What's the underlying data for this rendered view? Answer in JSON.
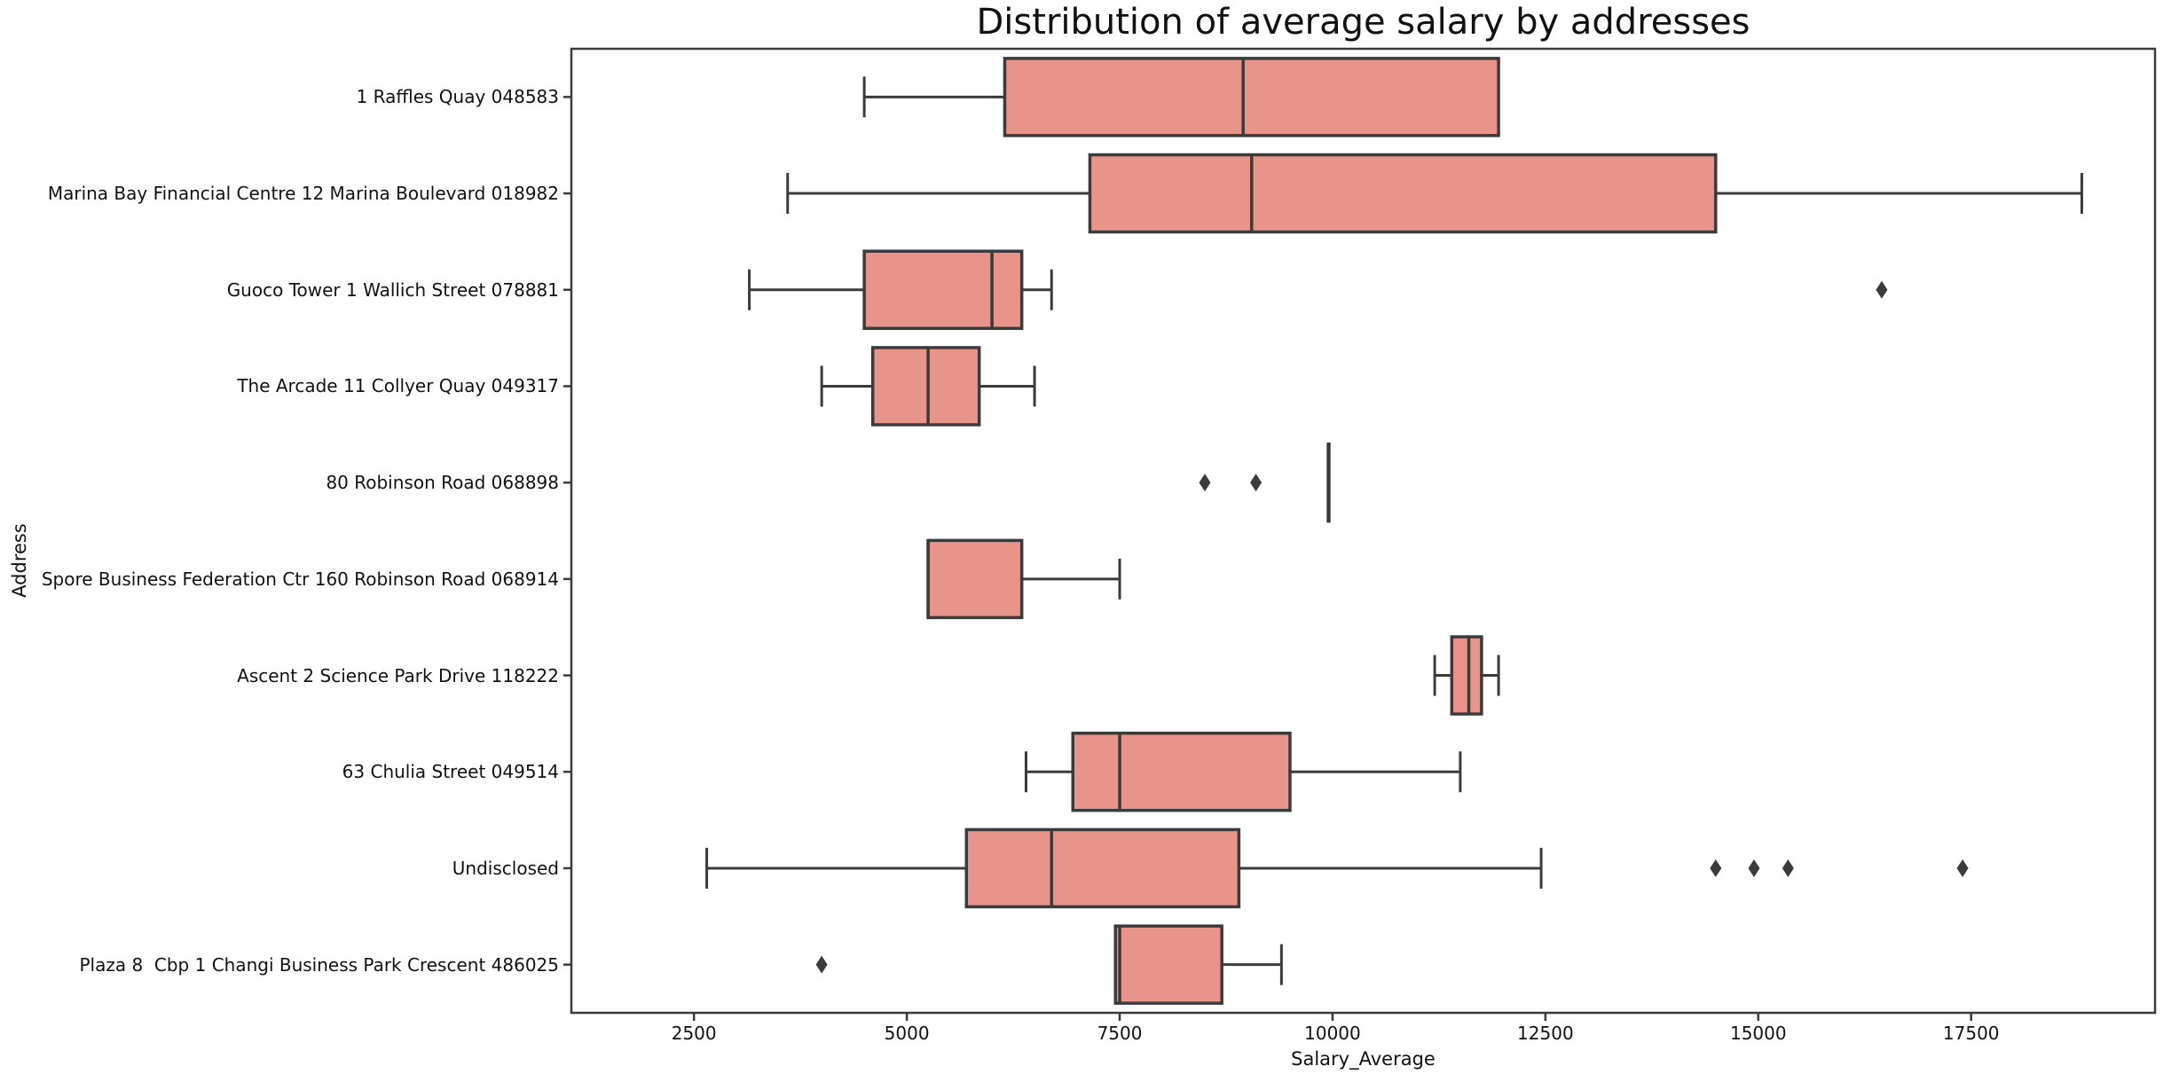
{
  "chart_data": {
    "type": "boxplot",
    "orientation": "horizontal",
    "title": "Distribution of average salary by addresses",
    "xlabel": "Salary_Average",
    "ylabel": "Address",
    "grid": false,
    "legend": "none",
    "x_axis": {
      "min": 1060,
      "max": 19660,
      "ticks": [
        2500,
        5000,
        7500,
        10000,
        12500,
        15000,
        17500
      ]
    },
    "colors": {
      "box_fill": "#e9948a",
      "line": "#3b3b3b",
      "text": "#111111",
      "background": "#ffffff"
    },
    "boxes": [
      {
        "label": "1 Raffles Quay 048583",
        "whisker_low": 4500,
        "q1": 6150,
        "median": 8950,
        "q3": 11950,
        "whisker_high": 11950,
        "outliers": []
      },
      {
        "label": "Marina Bay Financial Centre 12 Marina Boulevard 018982",
        "whisker_low": 3600,
        "q1": 7150,
        "median": 9050,
        "q3": 14500,
        "whisker_high": 18800,
        "outliers": []
      },
      {
        "label": "Guoco Tower 1 Wallich Street 078881",
        "whisker_low": 3150,
        "q1": 4500,
        "median": 6000,
        "q3": 6350,
        "whisker_high": 6700,
        "outliers": [
          16450
        ]
      },
      {
        "label": "The Arcade 11 Collyer Quay 049317",
        "whisker_low": 4000,
        "q1": 4600,
        "median": 5250,
        "q3": 5850,
        "whisker_high": 6500,
        "outliers": []
      },
      {
        "label": "80 Robinson Road 068898",
        "whisker_low": 9950,
        "q1": 9950,
        "median": 9950,
        "q3": 9950,
        "whisker_high": 9950,
        "outliers": [
          8500,
          9100
        ]
      },
      {
        "label": "Spore Business Federation Ctr 160 Robinson Road 068914",
        "whisker_low": 5250,
        "q1": 5250,
        "median": 5250,
        "q3": 6350,
        "whisker_high": 7500,
        "outliers": []
      },
      {
        "label": "Ascent 2 Science Park Drive 118222",
        "whisker_low": 11200,
        "q1": 11400,
        "median": 11600,
        "q3": 11750,
        "whisker_high": 11950,
        "outliers": []
      },
      {
        "label": "63 Chulia Street 049514",
        "whisker_low": 6400,
        "q1": 6950,
        "median": 7500,
        "q3": 9500,
        "whisker_high": 11500,
        "outliers": []
      },
      {
        "label": "Undisclosed",
        "whisker_low": 2650,
        "q1": 5700,
        "median": 6700,
        "q3": 8900,
        "whisker_high": 12450,
        "outliers": [
          14500,
          14950,
          15350,
          17400
        ]
      },
      {
        "label": "Plaza 8  Cbp 1 Changi Business Park Crescent 486025",
        "whisker_low": 7450,
        "q1": 7450,
        "median": 7500,
        "q3": 8700,
        "whisker_high": 9400,
        "outliers": [
          4000
        ]
      }
    ]
  }
}
